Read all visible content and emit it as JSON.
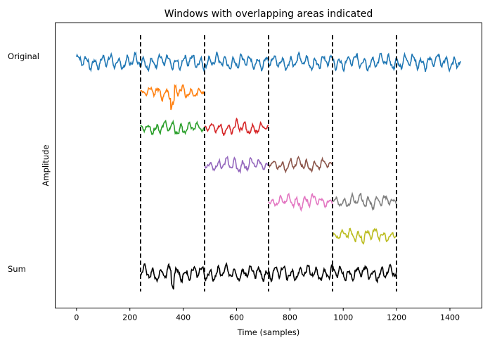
{
  "chart_data": {
    "type": "line",
    "title": "Windows with overlapping areas indicated",
    "xlabel": "Time (samples)",
    "ylabel": "Amplitude",
    "xlim": [
      -80,
      1520
    ],
    "xticks": [
      0,
      200,
      400,
      600,
      800,
      1000,
      1200,
      1400
    ],
    "yticks_visible": false,
    "grid": false,
    "legend": "none",
    "row_labels": {
      "original": "Original",
      "sum": "Sum"
    },
    "window_boundaries": [
      240,
      480,
      720,
      960,
      1200
    ],
    "boundary_style": {
      "color": "#000000",
      "dash": "dashed"
    },
    "series": [
      {
        "role": "original",
        "row": 0,
        "x_range": [
          0,
          1440
        ],
        "color": "#1f77b4"
      },
      {
        "role": "window-1",
        "row": 1,
        "x_range": [
          240,
          480
        ],
        "color": "#ff7f0e"
      },
      {
        "role": "window-2",
        "row": 2,
        "x_range": [
          240,
          480
        ],
        "color": "#2ca02c"
      },
      {
        "role": "window-3",
        "row": 2,
        "x_range": [
          480,
          720
        ],
        "color": "#d62728"
      },
      {
        "role": "window-4",
        "row": 3,
        "x_range": [
          480,
          720
        ],
        "color": "#9467bd"
      },
      {
        "role": "window-5",
        "row": 3,
        "x_range": [
          720,
          960
        ],
        "color": "#8c564b"
      },
      {
        "role": "window-6",
        "row": 4,
        "x_range": [
          720,
          960
        ],
        "color": "#e377c2"
      },
      {
        "role": "window-7",
        "row": 4,
        "x_range": [
          960,
          1200
        ],
        "color": "#7f7f7f"
      },
      {
        "role": "window-8",
        "row": 5,
        "x_range": [
          960,
          1200
        ],
        "color": "#bcbd22"
      },
      {
        "role": "sum",
        "row": 6,
        "x_range": [
          240,
          1200
        ],
        "color": "#000000"
      }
    ]
  }
}
